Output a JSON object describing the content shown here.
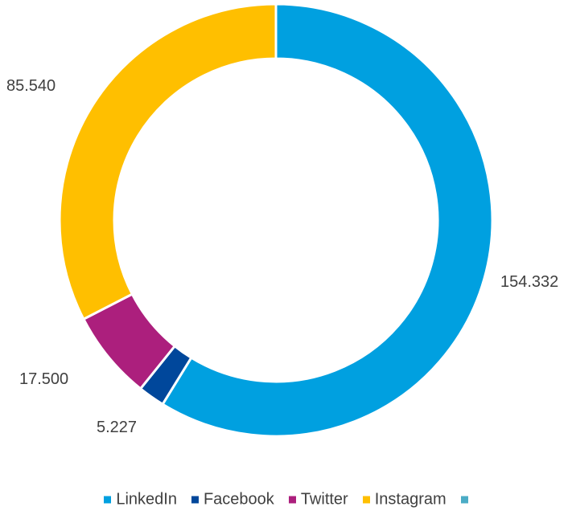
{
  "chart_data": {
    "type": "pie",
    "variant": "donut",
    "categories": [
      "LinkedIn",
      "Facebook",
      "Twitter",
      "Instagram",
      ""
    ],
    "values": [
      154332,
      5227,
      17500,
      85540,
      0
    ],
    "data_labels": [
      "154.332",
      "5.227",
      "17.500",
      "85.540",
      ""
    ],
    "colors": [
      "#00a0e0",
      "#00479b",
      "#ac1f7d",
      "#ffbf00",
      "#4bacc6"
    ],
    "start_angle_deg": 0,
    "direction": "clockwise",
    "legend_position": "bottom"
  }
}
